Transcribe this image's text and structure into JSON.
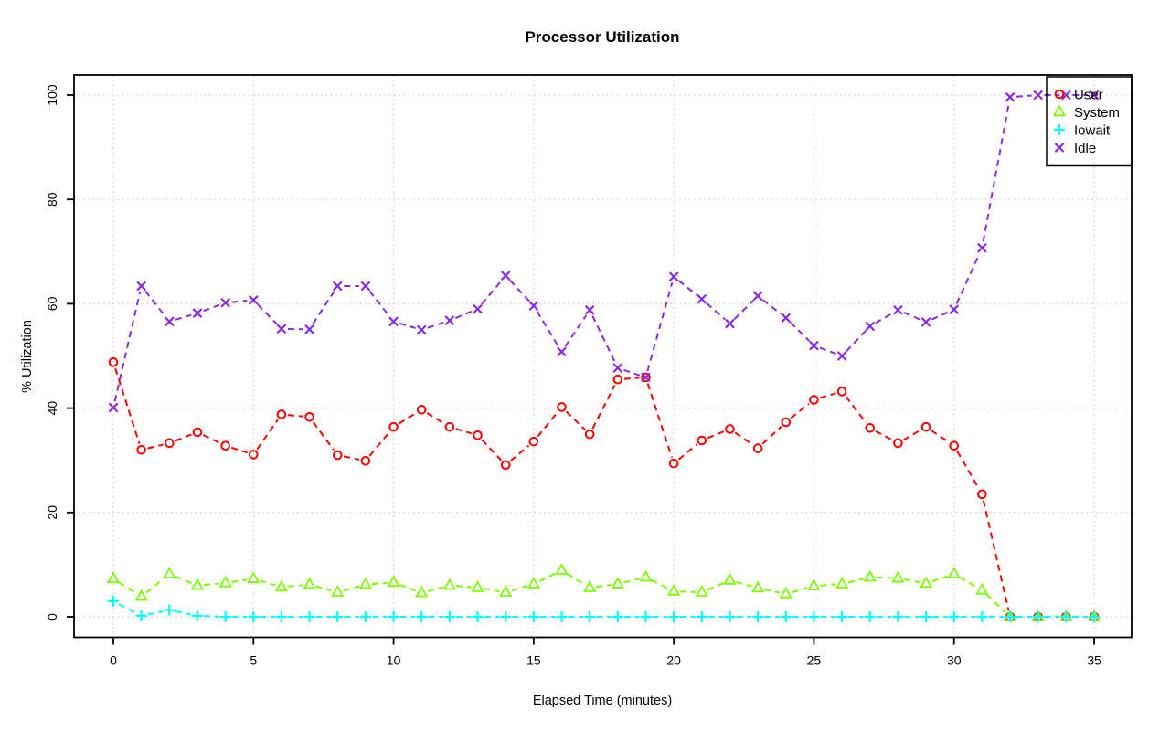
{
  "figure": {
    "title": "Processor Utilization",
    "xlabel": "Elapsed Time (minutes)",
    "ylabel": "% Utilization"
  },
  "chart_data": {
    "type": "line",
    "title": "Processor Utilization",
    "xlabel": "Elapsed Time (minutes)",
    "ylabel": "% Utilization",
    "xlim": [
      0,
      35
    ],
    "ylim": [
      0,
      100
    ],
    "xticks": [
      0,
      5,
      10,
      15,
      20,
      25,
      30,
      35
    ],
    "yticks": [
      0,
      20,
      40,
      60,
      80,
      100
    ],
    "grid": "dotted",
    "line_style": "dashed",
    "point_and_line": true,
    "legend_position": "top-right",
    "legend_transparent": true,
    "colors": {
      "grid": "#C9C9C9",
      "axis": "#000000",
      "user": "#FF0000",
      "system": "#7CFC00",
      "iowait": "#00FFFF",
      "idle": "#8A2BE2"
    },
    "x": [
      0,
      1,
      2,
      3,
      4,
      5,
      6,
      7,
      8,
      9,
      10,
      11,
      12,
      13,
      14,
      15,
      16,
      17,
      18,
      19,
      20,
      21,
      22,
      23,
      24,
      25,
      26,
      27,
      28,
      29,
      30,
      31,
      32,
      33,
      34,
      35
    ],
    "series": [
      {
        "name": "User",
        "marker": "circle",
        "color": "#FF0000",
        "values": [
          48.8,
          32.0,
          33.3,
          35.4,
          32.8,
          31.1,
          38.8,
          38.3,
          31.0,
          29.9,
          36.4,
          39.7,
          36.4,
          34.8,
          29.1,
          33.6,
          40.2,
          35.0,
          45.5,
          45.9,
          29.4,
          33.8,
          36.0,
          32.3,
          37.3,
          41.6,
          43.2,
          36.2,
          33.3,
          36.4,
          32.8,
          23.5,
          0,
          0,
          0,
          0
        ]
      },
      {
        "name": "System",
        "marker": "triangle",
        "color": "#7CFC00",
        "values": [
          7.3,
          3.9,
          8.2,
          6.0,
          6.5,
          7.3,
          5.7,
          6.2,
          4.7,
          6.2,
          6.6,
          4.6,
          6.0,
          5.6,
          4.7,
          6.3,
          8.9,
          5.6,
          6.3,
          7.6,
          4.9,
          4.7,
          7.0,
          5.5,
          4.4,
          5.9,
          6.3,
          7.6,
          7.4,
          6.4,
          8.2,
          5.1,
          0,
          0,
          0,
          0
        ]
      },
      {
        "name": "Iowait",
        "marker": "plus",
        "color": "#00FFFF",
        "values": [
          3.0,
          0.2,
          1.3,
          0.2,
          0,
          0,
          0,
          0,
          0,
          0,
          0,
          0,
          0,
          0,
          0,
          0,
          0,
          0,
          0,
          0,
          0,
          0,
          0,
          0,
          0,
          0,
          0,
          0,
          0,
          0,
          0,
          0,
          0,
          0,
          0,
          0
        ]
      },
      {
        "name": "Idle",
        "marker": "x",
        "color": "#8A2BE2",
        "values": [
          40.1,
          63.4,
          56.6,
          58.2,
          60.2,
          60.7,
          55.2,
          55.1,
          63.4,
          63.4,
          56.6,
          55.0,
          56.8,
          59.0,
          65.4,
          59.6,
          50.8,
          58.8,
          47.7,
          45.9,
          65.2,
          60.9,
          56.2,
          61.5,
          57.3,
          52.0,
          50.0,
          55.7,
          58.8,
          56.5,
          58.9,
          70.7,
          99.6,
          100,
          100,
          100
        ]
      }
    ]
  }
}
